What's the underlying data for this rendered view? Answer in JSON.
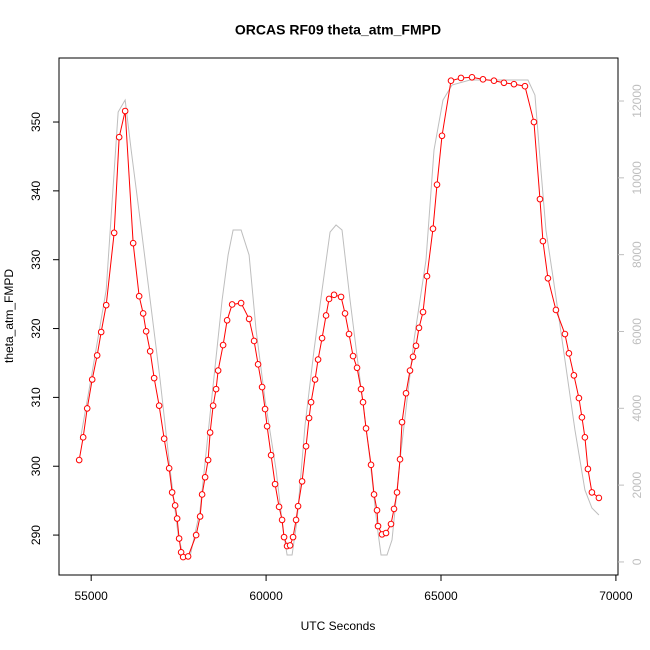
{
  "chart_data": {
    "type": "line",
    "title": "ORCAS RF09 theta_atm_FMPD",
    "xlabel": "UTC Seconds",
    "ylabel": "theta_atm_FMPD",
    "xlim": [
      54080,
      70060
    ],
    "ylim": [
      284.2,
      359.3
    ],
    "y2lim": [
      -340,
      13120
    ],
    "xticks": [
      55000,
      60000,
      65000,
      70000
    ],
    "yticks": [
      290,
      300,
      310,
      320,
      330,
      340,
      350
    ],
    "y2ticks": [
      0,
      2000,
      4000,
      6000,
      8000,
      10000,
      12000
    ],
    "series": [
      {
        "name": "theta_atm_FMPD",
        "color": "#ff0000",
        "markers": true,
        "x": [
          54657,
          54771,
          54886,
          55029,
          55171,
          55286,
          55429,
          55657,
          55800,
          55971,
          56200,
          56371,
          56486,
          56571,
          56686,
          56800,
          56943,
          57086,
          57229,
          57314,
          57400,
          57457,
          57514,
          57571,
          57629,
          57771,
          58000,
          58114,
          58171,
          58257,
          58343,
          58400,
          58486,
          58571,
          58629,
          58771,
          58886,
          59029,
          59286,
          59514,
          59657,
          59771,
          59886,
          59971,
          60029,
          60143,
          60257,
          60371,
          60457,
          60514,
          60600,
          60686,
          60771,
          60857,
          60914,
          61029,
          61143,
          61229,
          61286,
          61400,
          61486,
          61600,
          61714,
          61800,
          61943,
          62143,
          62257,
          62371,
          62486,
          62600,
          62714,
          62771,
          62857,
          63000,
          63086,
          63171,
          63200,
          63314,
          63429,
          63571,
          63657,
          63743,
          63829,
          63886,
          64000,
          64114,
          64200,
          64286,
          64371,
          64486,
          64600,
          64771,
          64886,
          65029,
          65286,
          65571,
          65886,
          66200,
          66514,
          66800,
          67086,
          67400,
          67657,
          67829,
          67914,
          68057,
          68286,
          68543,
          68657,
          68800,
          68943,
          69029,
          69114,
          69200,
          69314,
          69514
        ],
        "values": [
          300.9,
          304.2,
          308.4,
          312.6,
          316.1,
          319.5,
          323.4,
          333.9,
          347.8,
          351.6,
          332.4,
          324.7,
          322.2,
          319.6,
          316.7,
          312.8,
          308.8,
          304.0,
          299.7,
          296.2,
          294.3,
          292.4,
          289.5,
          287.5,
          286.8,
          286.9,
          290.0,
          292.7,
          295.9,
          298.4,
          300.9,
          304.9,
          308.8,
          311.2,
          313.9,
          317.6,
          321.2,
          323.5,
          323.7,
          321.4,
          318.2,
          314.8,
          311.5,
          308.3,
          305.8,
          301.6,
          297.4,
          294.1,
          292.2,
          289.7,
          288.4,
          288.5,
          289.7,
          292.2,
          294.2,
          297.8,
          302.9,
          307.0,
          309.3,
          312.6,
          315.5,
          318.6,
          321.9,
          324.3,
          324.9,
          324.6,
          322.2,
          319.2,
          316.0,
          314.3,
          311.2,
          309.3,
          305.5,
          300.2,
          295.9,
          293.6,
          291.3,
          290.1,
          290.3,
          291.6,
          293.8,
          296.2,
          301.0,
          306.4,
          310.6,
          313.9,
          315.9,
          317.5,
          320.1,
          322.4,
          327.6,
          334.5,
          340.9,
          348.0,
          356.0,
          356.4,
          356.5,
          356.2,
          356.0,
          355.7,
          355.5,
          355.2,
          350.0,
          338.8,
          332.7,
          327.3,
          322.7,
          319.2,
          316.4,
          313.2,
          309.9,
          307.1,
          304.2,
          299.6,
          296.2,
          295.4
        ]
      },
      {
        "color": "#bebebe",
        "axis": "y2",
        "markers": false,
        "x": [
          54686,
          55029,
          55429,
          55771,
          55971,
          56143,
          56400,
          56686,
          56971,
          57257,
          57486,
          57629,
          57829,
          58114,
          58457,
          58743,
          58914,
          59057,
          59286,
          59514,
          59714,
          59971,
          60286,
          60486,
          60600,
          60743,
          60886,
          61114,
          61371,
          61600,
          61829,
          62000,
          62171,
          62400,
          62686,
          62971,
          63171,
          63286,
          63457,
          63600,
          63829,
          64229,
          64571,
          64800,
          65057,
          65314,
          65829,
          66400,
          66971,
          67486,
          67686,
          67857,
          68000,
          68257,
          68543,
          68829,
          69114,
          69314,
          69514
        ],
        "values": [
          3175,
          4945,
          7080,
          11713,
          12025,
          10724,
          8902,
          6820,
          4737,
          2395,
          703,
          156,
          156,
          1353,
          4347,
          6820,
          7991,
          8641,
          8641,
          7991,
          6039,
          4217,
          2395,
          833,
          182,
          182,
          1093,
          3566,
          5518,
          7080,
          8589,
          8772,
          8641,
          6820,
          4737,
          2655,
          963,
          182,
          182,
          573,
          2655,
          5778,
          7860,
          10724,
          12025,
          12415,
          12546,
          12546,
          12546,
          12546,
          12155,
          10203,
          8641,
          7080,
          5258,
          3436,
          1874,
          1406,
          1223
        ]
      }
    ]
  }
}
